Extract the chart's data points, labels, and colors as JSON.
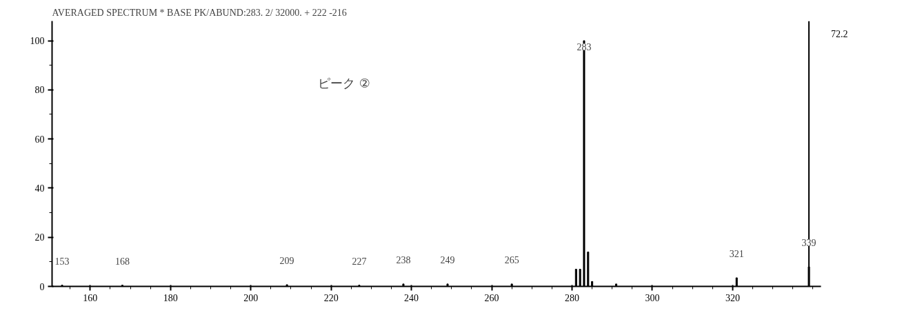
{
  "chart_data": {
    "type": "bar",
    "title": "AVERAGED SPECTRUM * BASE PK/ABUND:283. 2/ 32000. + 222 -216",
    "x": [
      153,
      168,
      209,
      227,
      238,
      249,
      265,
      281,
      282,
      283,
      284,
      285,
      291,
      321,
      339
    ],
    "series": [
      {
        "color": "#000000",
        "values": [
          0.5,
          0.5,
          0.7,
          0.5,
          1,
          1,
          1,
          7,
          7,
          100,
          14,
          2,
          1,
          3.5,
          8
        ]
      }
    ],
    "xlim": [
      150.5,
      342
    ],
    "ylim": [
      0,
      108
    ],
    "xticks": [
      160,
      180,
      200,
      220,
      240,
      260,
      280,
      300,
      320
    ],
    "yticks": [
      0,
      20,
      40,
      60,
      80,
      100
    ],
    "ref_lines": [
      {
        "axis": "x",
        "value": 339,
        "color": "#000000"
      }
    ],
    "annotations": [
      "ピーク ②",
      "72.2",
      {
        "text": "153",
        "x": 153,
        "y": 0.5
      },
      {
        "text": "168",
        "x": 168,
        "y": 0.5
      },
      {
        "text": "209",
        "x": 209,
        "y": 0.7
      },
      {
        "text": "227",
        "x": 227,
        "y": 0.5
      },
      {
        "text": "238",
        "x": 238,
        "y": 1
      },
      {
        "text": "249",
        "x": 249,
        "y": 1
      },
      {
        "text": "265",
        "x": 265,
        "y": 1
      },
      {
        "text": "283",
        "x": 283,
        "y": 100
      },
      {
        "text": "321",
        "x": 321,
        "y": 3.5
      },
      {
        "text": "339",
        "x": 339,
        "y": 8
      }
    ],
    "grid": false
  }
}
